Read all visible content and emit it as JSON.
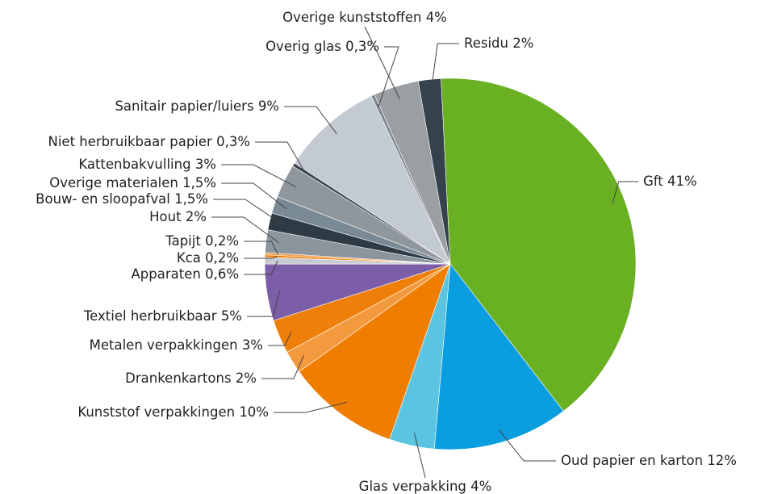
{
  "chart_data": {
    "type": "pie",
    "categories": [
      "Gft",
      "Oud papier en karton",
      "Glas verpakking",
      "Kunststof verpakkingen",
      "Drankenkartons",
      "Metalen verpakkingen",
      "Textiel herbruikbaar",
      "Apparaten",
      "Kca",
      "Tapijt",
      "Hout",
      "Bouw- en sloopafval",
      "Overige materialen",
      "Kattenbakvulling",
      "Niet herbruikbaar papier",
      "Sanitair papier/luiers",
      "Overig glas",
      "Overige kunststoffen",
      "Residu"
    ],
    "values": [
      41,
      12,
      4,
      10,
      2,
      3,
      5,
      0.6,
      0.2,
      0.2,
      2,
      1.5,
      1.5,
      3,
      0.3,
      9,
      0.3,
      4,
      2
    ],
    "value_labels": [
      "41%",
      "12%",
      "4%",
      "10%",
      "2%",
      "3%",
      "5%",
      "0,6%",
      "0,2%",
      "0,2%",
      "2%",
      "1,5%",
      "1,5%",
      "3%",
      "0,3%",
      "9%",
      "0,3%",
      "4%",
      "2%"
    ],
    "colors": [
      "#6ab023",
      "#0a9de0",
      "#5bc4e0",
      "#ef7d00",
      "#f39a3e",
      "#ee7f0a",
      "#7b5ea7",
      "#c8ccd2",
      "#ef7d00",
      "#f5a050",
      "#8a959e",
      "#2e3a44",
      "#7a8a95",
      "#8f979d",
      "#3a4650",
      "#c3cad1",
      "#7a858e",
      "#9a9fa3",
      "#35424c"
    ]
  }
}
